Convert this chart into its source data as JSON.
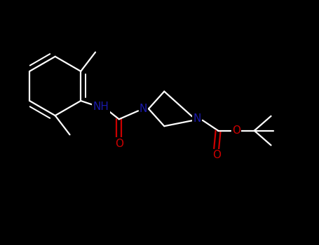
{
  "bg": "#000000",
  "bc": "#ffffff",
  "nc": "#1a1aaa",
  "oc": "#cc0000",
  "lw": 1.6,
  "fs": 11,
  "figsize": [
    4.55,
    3.5
  ],
  "dpi": 100,
  "xlim": [
    0,
    9.1
  ],
  "ylim": [
    0,
    7.0
  ]
}
